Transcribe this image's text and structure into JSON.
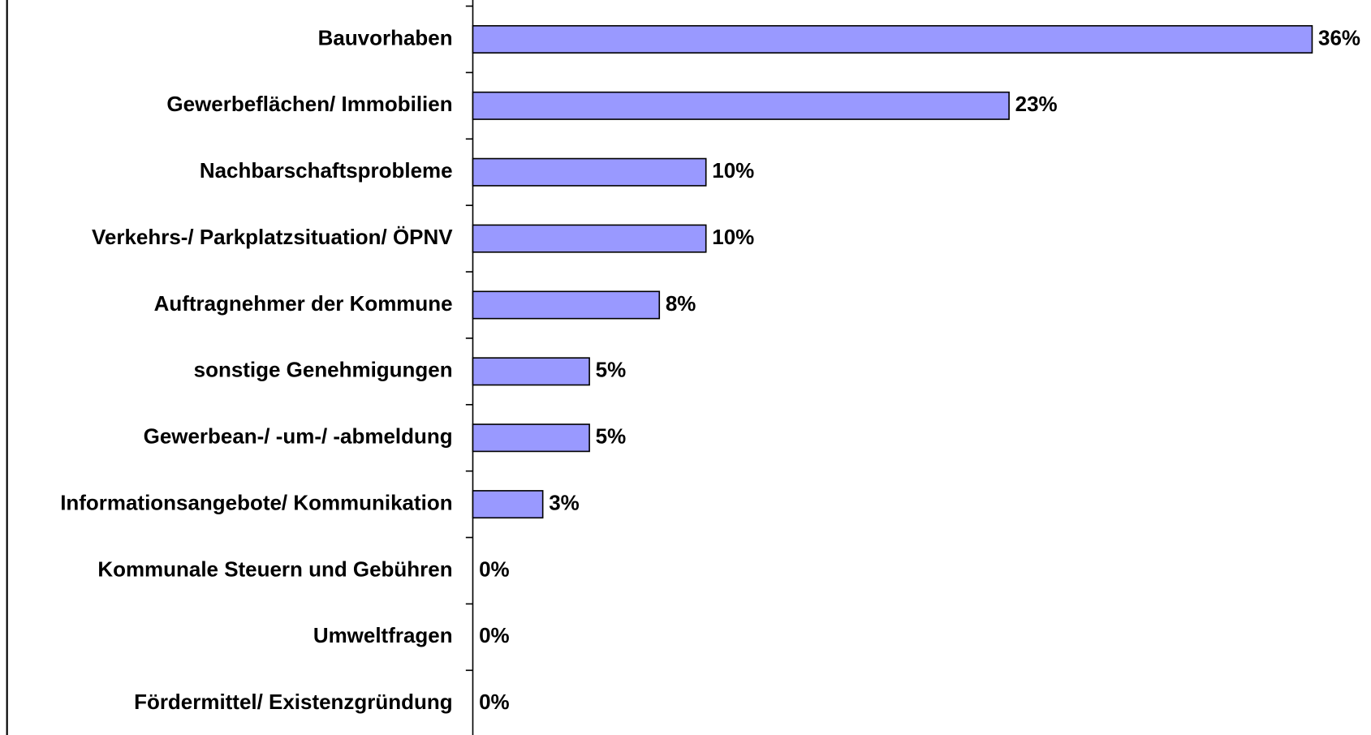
{
  "chart_data": {
    "type": "bar",
    "orientation": "horizontal",
    "categories": [
      "Bauvorhaben",
      "Gewerbeflächen/ Immobilien",
      "Nachbarschaftsprobleme",
      "Verkehrs-/ Parkplatzsituation/ ÖPNV",
      "Auftragnehmer der Kommune",
      "sonstige Genehmigungen",
      "Gewerbean-/ -um-/ -abmeldung",
      "Informationsangebote/ Kommunikation",
      "Kommunale Steuern und Gebühren",
      "Umweltfragen",
      "Fördermittel/ Existenzgründung"
    ],
    "values": [
      36,
      23,
      10,
      10,
      8,
      5,
      5,
      3,
      0,
      0,
      0
    ],
    "value_labels": [
      "36%",
      "23%",
      "10%",
      "10%",
      "8%",
      "5%",
      "5%",
      "3%",
      "0%",
      "0%",
      "0%"
    ],
    "color": "#9999ff",
    "xlim": [
      0,
      36
    ]
  }
}
